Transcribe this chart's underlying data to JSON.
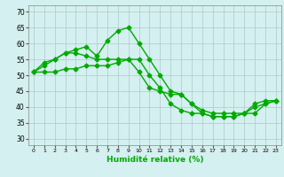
{
  "xlabel": "Humidité relative (%)",
  "background_color": "#d4f0f0",
  "grid_color": "#b0c8c8",
  "line_color": "#00aa00",
  "marker": "D",
  "markersize": 2.5,
  "linewidth": 1.0,
  "xlim": [
    -0.5,
    23.5
  ],
  "ylim": [
    28,
    72
  ],
  "xticks": [
    0,
    1,
    2,
    3,
    4,
    5,
    6,
    7,
    8,
    9,
    10,
    11,
    12,
    13,
    14,
    15,
    16,
    17,
    18,
    19,
    20,
    21,
    22,
    23
  ],
  "yticks": [
    30,
    35,
    40,
    45,
    50,
    55,
    60,
    65,
    70
  ],
  "series": [
    [
      51,
      54,
      55,
      57,
      58,
      59,
      56,
      61,
      64,
      65,
      60,
      55,
      50,
      45,
      44,
      41,
      39,
      38,
      38,
      38,
      38,
      41,
      42,
      42
    ],
    [
      51,
      53,
      55,
      57,
      57,
      56,
      55,
      55,
      55,
      55,
      51,
      46,
      45,
      44,
      44,
      41,
      38,
      37,
      37,
      37,
      38,
      38,
      41,
      42
    ],
    [
      51,
      51,
      51,
      52,
      52,
      53,
      53,
      53,
      54,
      55,
      55,
      50,
      46,
      41,
      39,
      38,
      38,
      37,
      37,
      37,
      38,
      40,
      41,
      42
    ]
  ]
}
